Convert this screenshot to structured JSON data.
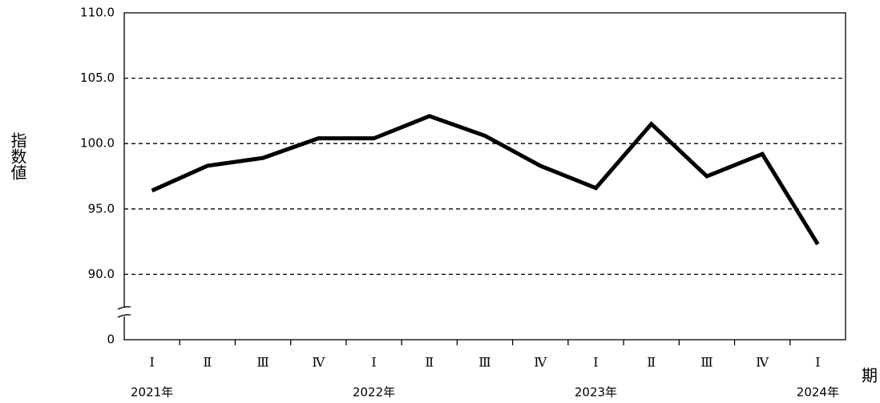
{
  "chart_data": {
    "type": "line",
    "y_axis_label": "指数値",
    "x_axis_label": "期",
    "categories": [
      "Ⅰ",
      "Ⅱ",
      "Ⅲ",
      "Ⅳ",
      "Ⅰ",
      "Ⅱ",
      "Ⅲ",
      "Ⅳ",
      "Ⅰ",
      "Ⅱ",
      "Ⅲ",
      "Ⅳ",
      "Ⅰ"
    ],
    "year_labels": [
      "2021年",
      null,
      null,
      null,
      "2022年",
      null,
      null,
      null,
      "2023年",
      null,
      null,
      null,
      "2024年"
    ],
    "series": [
      {
        "color": "#000000",
        "values": [
          96.4,
          98.3,
          98.9,
          100.4,
          100.4,
          102.1,
          100.6,
          98.3,
          96.6,
          101.5,
          97.5,
          99.2,
          92.3
        ]
      }
    ],
    "ylim": [
      85,
      110
    ],
    "yticks": [
      {
        "value": 90,
        "label": "90.0"
      },
      {
        "value": 95,
        "label": "95.0"
      },
      {
        "value": 100,
        "label": "100.0"
      },
      {
        "value": 105,
        "label": "105.0"
      },
      {
        "value": 110,
        "label": "110.0"
      }
    ],
    "y_origin_label": "0",
    "axis_break": true,
    "grid": true
  }
}
